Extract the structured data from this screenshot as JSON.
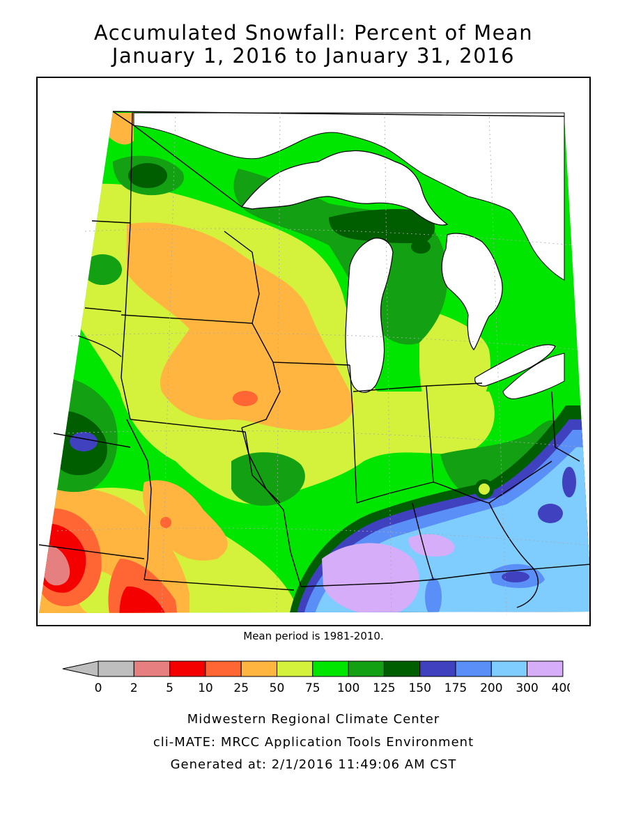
{
  "title": {
    "line1": "Accumulated Snowfall: Percent of Mean",
    "line2": "January 1, 2016 to January 31, 2016"
  },
  "note": "Mean period is 1981-2010.",
  "legend": {
    "ticks": [
      "0",
      "2",
      "5",
      "10",
      "25",
      "50",
      "75",
      "100",
      "125",
      "150",
      "175",
      "200",
      "300",
      "400"
    ],
    "colors": [
      "#bebebe",
      "#e67f7f",
      "#f50000",
      "#ff6633",
      "#ffb53f",
      "#d4f23b",
      "#00e600",
      "#13a013",
      "#005d00",
      "#4041bf",
      "#5a8ff7",
      "#7fccfe",
      "#d6adf8"
    ]
  },
  "map": {
    "ocean_color": "#ffffff",
    "boundary_color": "#000000",
    "regions": [
      {
        "name": "far-north-border",
        "color": "#ffb53f"
      },
      {
        "name": "minnesota-band",
        "color": "#d4f23b"
      },
      {
        "name": "central-corridor",
        "color": "#ffb53f"
      },
      {
        "name": "lake-states-green",
        "color": "#00e600"
      },
      {
        "name": "upper-michigan",
        "color": "#13a013"
      },
      {
        "name": "southeast-high",
        "color": "#7fccfe"
      },
      {
        "name": "southwest-low",
        "color": "#f50000"
      }
    ]
  },
  "footer": {
    "line1": "Midwestern Regional Climate Center",
    "line2": "cli-MATE: MRCC Application Tools Environment",
    "line3": "Generated at: 2/1/2016 11:49:06 AM CST"
  }
}
